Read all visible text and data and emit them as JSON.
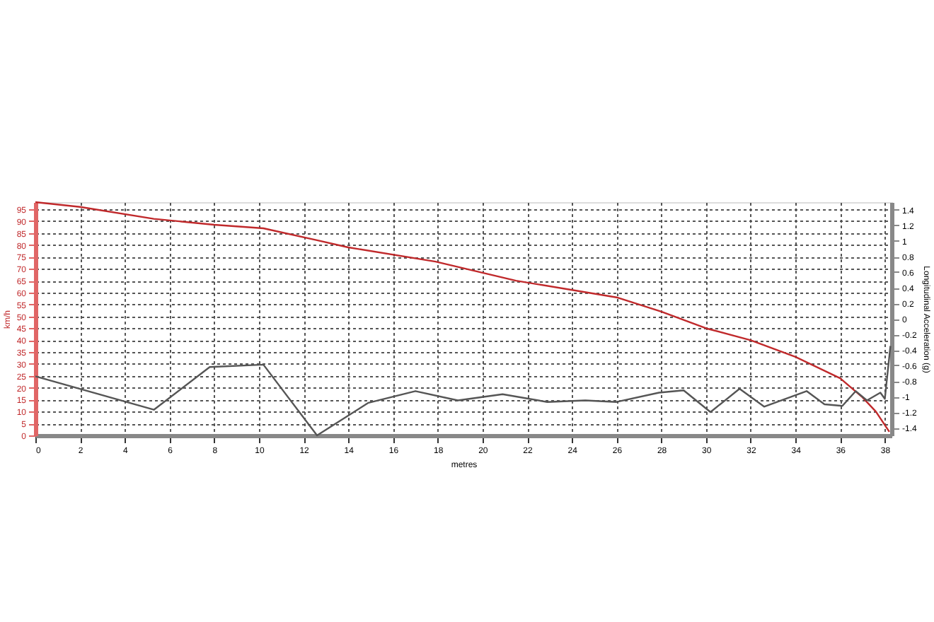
{
  "chart_data": {
    "type": "line",
    "xlabel": "metres",
    "ylabel": "km/h",
    "y2label": "Longitudinal Acceleration (g)",
    "xlim": [
      0,
      38.3
    ],
    "xticks": [
      0,
      2,
      4,
      6,
      8,
      10,
      12,
      14,
      16,
      18,
      20,
      22,
      24,
      26,
      28,
      30,
      32,
      34,
      36,
      38
    ],
    "ylim": [
      0,
      98
    ],
    "yticks": [
      0,
      5,
      10,
      15,
      20,
      25,
      30,
      35,
      40,
      45,
      50,
      55,
      60,
      65,
      70,
      75,
      80,
      85,
      90,
      95
    ],
    "y2lim": [
      -1.5,
      1.5
    ],
    "y2ticks": [
      -1.4,
      -1.2,
      -1,
      -0.8,
      -0.6,
      -0.4,
      -0.2,
      0,
      0.2,
      0.4,
      0.6,
      0.8,
      1,
      1.2,
      1.4
    ],
    "grid": true,
    "marker": "none",
    "line_style": "solid",
    "series": [
      {
        "color": "#c0292b",
        "x": [
          0,
          2,
          5.3,
          8,
          10.2,
          12.6,
          14,
          17.9,
          21.5,
          26,
          28,
          30,
          32,
          34,
          36,
          37,
          37.6,
          38.2
        ],
        "values": [
          98,
          96,
          91,
          88.5,
          87,
          82,
          79,
          73,
          65,
          58,
          52,
          45,
          40,
          33,
          24,
          16,
          10,
          1.5
        ]
      },
      {
        "color": "#555555",
        "axis": "y2",
        "x": [
          0,
          5.3,
          7.8,
          10.2,
          12.6,
          14.9,
          17,
          18.9,
          20.9,
          22.9,
          24.6,
          26,
          27.9,
          29,
          30.2,
          31.5,
          32.6,
          34.5,
          35.3,
          36.1,
          36.7,
          37.2,
          37.8,
          38,
          38.25
        ],
        "values": [
          -0.74,
          -1.17,
          -0.62,
          -0.59,
          -1.5,
          -1.08,
          -0.93,
          -1.05,
          -0.97,
          -1.07,
          -1.05,
          -1.07,
          -0.95,
          -0.92,
          -1.2,
          -0.9,
          -1.13,
          -0.93,
          -1.1,
          -1.12,
          -0.93,
          -1.05,
          -0.95,
          -1.03,
          -0.35
        ]
      }
    ]
  }
}
